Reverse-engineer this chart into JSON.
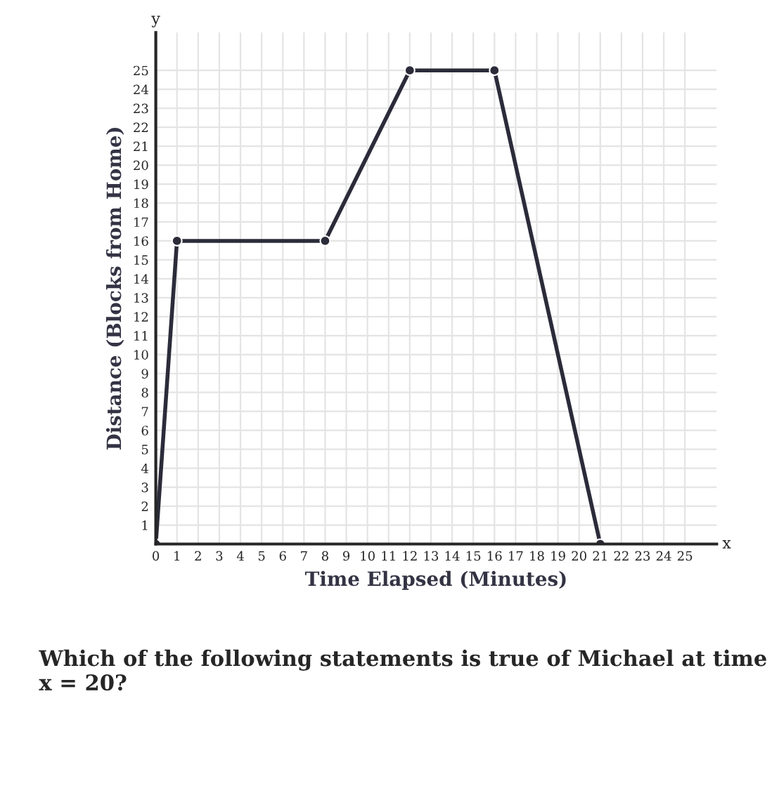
{
  "chart_data": {
    "type": "line",
    "xlabel": "Time Elapsed (Minutes)",
    "ylabel": "Distance (Blocks from Home)",
    "x": [
      0,
      1,
      8,
      12,
      16,
      21
    ],
    "series": [
      {
        "color": "#2b2b3a",
        "values": [
          0,
          16,
          16,
          25,
          25,
          0
        ]
      }
    ],
    "marker": "circle",
    "line_style": "solid",
    "grid": true,
    "xlim": [
      0,
      26.5
    ],
    "ylim": [
      0,
      27
    ],
    "xticks": [
      0,
      1,
      2,
      3,
      4,
      5,
      6,
      7,
      8,
      9,
      10,
      11,
      12,
      13,
      14,
      15,
      16,
      17,
      18,
      19,
      20,
      21,
      22,
      23,
      24,
      25
    ],
    "yticks": [
      1,
      2,
      3,
      4,
      5,
      6,
      7,
      8,
      9,
      10,
      11,
      12,
      13,
      14,
      15,
      16,
      17,
      18,
      19,
      20,
      21,
      22,
      23,
      24,
      25
    ],
    "annotations": [
      "x",
      "y",
      "Which of the following statements is true of Michael at time x = 20?"
    ]
  }
}
